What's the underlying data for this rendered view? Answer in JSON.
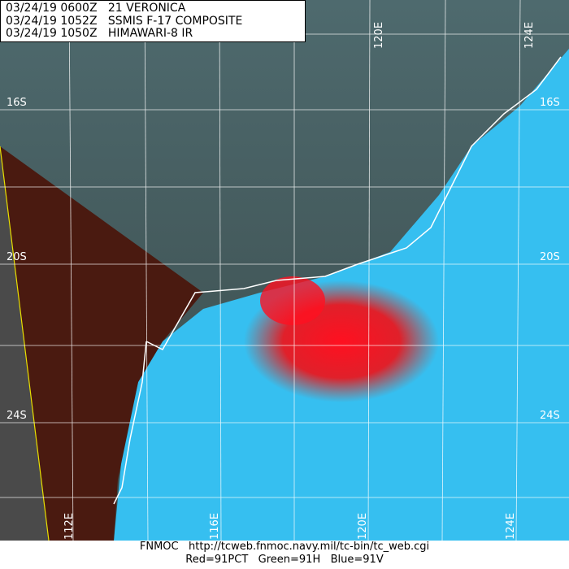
{
  "header": {
    "lines": [
      "03/24/19 0600Z   21 VERONICA",
      "03/24/19 1052Z   SSMIS F-17 COMPOSITE",
      "03/24/19 1050Z   HIMAWARI-8 IR"
    ]
  },
  "grid": {
    "lat_labels": [
      "16S",
      "20S",
      "24S"
    ],
    "lon_labels_top": [
      "120E",
      "124E"
    ],
    "lon_labels_bottom": [
      "112E",
      "116E",
      "120E",
      "124E"
    ]
  },
  "footer": {
    "line1": "FNMOC   http://tcweb.fnmoc.navy.mil/tc-bin/tc_web.cgi",
    "line2": "Red=91PCT   Green=91H   Blue=91V"
  },
  "colors": {
    "ocean": "#38c0ec",
    "land": "#4a1008",
    "clouds": "#506868",
    "convection": "#ff1020",
    "coast": "#ffffff",
    "swath_edge": "#e8e000"
  }
}
